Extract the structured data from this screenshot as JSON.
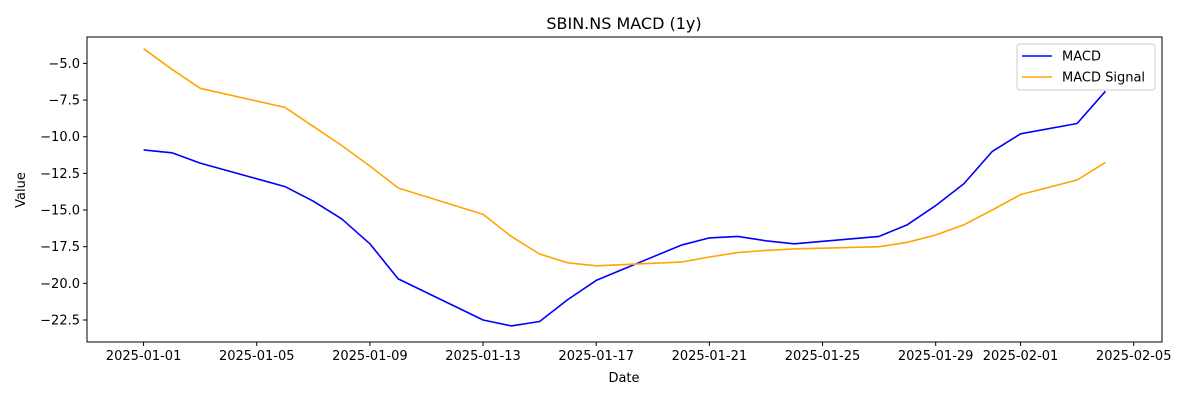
{
  "chart_data": {
    "type": "line",
    "title": "SBIN.NS MACD (1y)",
    "xlabel": "Date",
    "ylabel": "Value",
    "x": [
      "2025-01-01",
      "2025-01-02",
      "2025-01-03",
      "2025-01-06",
      "2025-01-07",
      "2025-01-08",
      "2025-01-09",
      "2025-01-10",
      "2025-01-13",
      "2025-01-14",
      "2025-01-15",
      "2025-01-16",
      "2025-01-17",
      "2025-01-20",
      "2025-01-21",
      "2025-01-22",
      "2025-01-23",
      "2025-01-24",
      "2025-01-27",
      "2025-01-28",
      "2025-01-29",
      "2025-01-30",
      "2025-01-31",
      "2025-02-01",
      "2025-02-03",
      "2025-02-04"
    ],
    "series": [
      {
        "name": "MACD",
        "color": "#0000ff",
        "values": [
          -10.9,
          -11.1,
          -11.8,
          -13.4,
          -14.4,
          -15.6,
          -17.3,
          -19.7,
          -22.5,
          -22.9,
          -22.6,
          -21.1,
          -19.8,
          -17.4,
          -16.9,
          -16.8,
          -17.1,
          -17.3,
          -16.8,
          -16.0,
          -14.7,
          -13.2,
          -11.0,
          -9.8,
          -9.1,
          -6.9
        ]
      },
      {
        "name": "MACD Signal",
        "color": "#ffa500",
        "values": [
          -4.0,
          -5.4,
          -6.7,
          -8.0,
          -9.3,
          -10.6,
          -12.0,
          -13.5,
          -15.3,
          -16.8,
          -18.0,
          -18.6,
          -18.8,
          -18.55,
          -18.2,
          -17.9,
          -17.75,
          -17.65,
          -17.5,
          -17.2,
          -16.7,
          -16.0,
          -15.0,
          -13.95,
          -12.95,
          -11.75
        ]
      }
    ],
    "xlim": [
      "2024-12-30",
      "2025-02-06"
    ],
    "ylim": [
      -24.0,
      -3.2
    ],
    "yticks": [
      -5.0,
      -7.5,
      -10.0,
      -12.5,
      -15.0,
      -17.5,
      -20.0,
      -22.5
    ],
    "yticklabels": [
      "−5.0",
      "−7.5",
      "−10.0",
      "−12.5",
      "−15.0",
      "−17.5",
      "−20.0",
      "−22.5"
    ],
    "xticks": [
      "2025-01-01",
      "2025-01-05",
      "2025-01-09",
      "2025-01-13",
      "2025-01-17",
      "2025-01-21",
      "2025-01-25",
      "2025-01-29",
      "2025-02-01",
      "2025-02-05"
    ],
    "grid": false,
    "legend": "top-right"
  }
}
